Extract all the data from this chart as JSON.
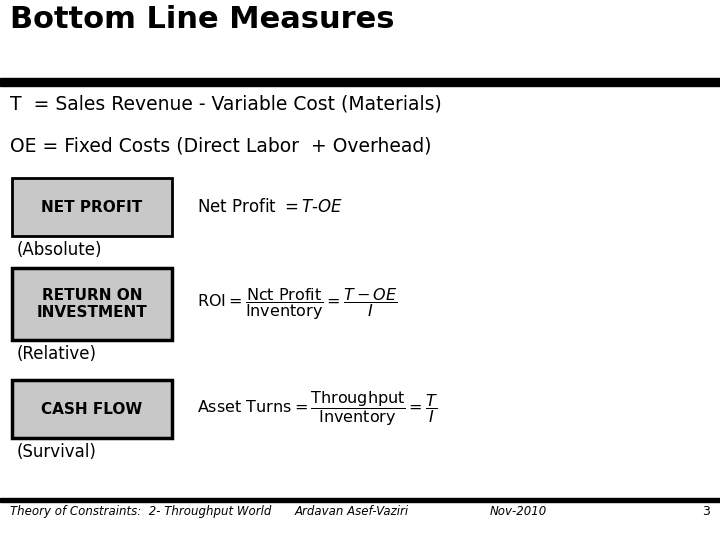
{
  "title": "Bottom Line Measures",
  "title_fontsize": 22,
  "line1": "T  = Sales Revenue - Variable Cost (Materials)",
  "line2": "OE = Fixed Costs (Direct Labor  + Overhead)",
  "box1_label": "NET PROFIT",
  "box1_sublabel": "(Absolute)",
  "box2_label": "RETURN ON\nINVESTMENT",
  "box2_sublabel": "(Relative)",
  "box3_label": "CASH FLOW",
  "box3_sublabel": "(Survival)",
  "footer_left": "Theory of Constraints:  2- Throughput World",
  "footer_mid": "Ardavan Asef-Vaziri",
  "footer_right": "Nov-2010",
  "footer_page": "3",
  "bg_color": "#ffffff",
  "box_bg": "#c8c8c8",
  "box_edge": "#000000",
  "text_color": "#000000"
}
